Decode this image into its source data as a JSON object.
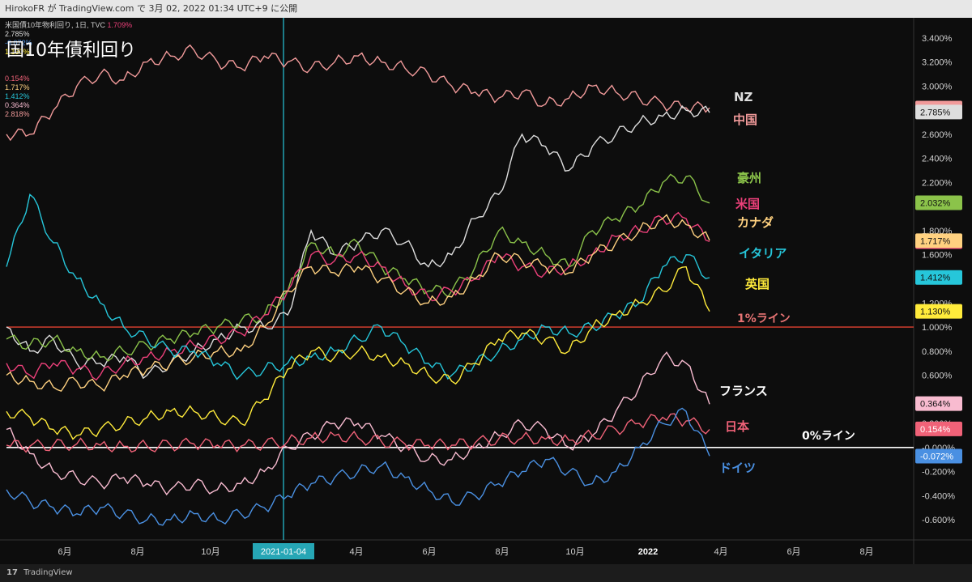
{
  "header": {
    "publish_info": "HirokoFR が TradingView.com で 3月 02, 2022 01:34 UTC+9 に公開"
  },
  "legend": {
    "title": "米国債10年物利回り, 1日, TVC",
    "title_value": "1.709%",
    "rows": [
      {
        "value": "2.785%",
        "color": "#dddddd"
      },
      {
        "value": "-0.072%",
        "color": "#4a90e2"
      },
      {
        "value": "1.130%",
        "color": "#ffeb3b"
      },
      {
        "value": "0.154%",
        "color": "#f06278"
      },
      {
        "value": "1.717%",
        "color": "#ffd180"
      },
      {
        "value": "1.412%",
        "color": "#26c6da"
      },
      {
        "value": "0.364%",
        "color": "#f8bbd0"
      },
      {
        "value": "2.818%",
        "color": "#f19a9a"
      }
    ]
  },
  "overlay_title": "国10年債利回り",
  "footer": {
    "brand": "TradingView",
    "logo_text": "17"
  },
  "crosshair_label": "2021-01-04",
  "chart_data": {
    "type": "line",
    "x_ticks": [
      "6月",
      "8月",
      "10月",
      "2021-01-04",
      "4月",
      "6月",
      "8月",
      "10月",
      "2022",
      "4月",
      "6月",
      "8月"
    ],
    "y_ticks": [
      "3.400%",
      "3.200%",
      "3.000%",
      "2.800%",
      "2.600%",
      "2.400%",
      "2.200%",
      "2.000%",
      "1.800%",
      "1.600%",
      "1.400%",
      "1.200%",
      "1.000%",
      "0.800%",
      "0.600%",
      "0.400%",
      "0.200%",
      "-0.000%",
      "-0.200%",
      "-0.400%",
      "-0.600%"
    ],
    "ylim": [
      -0.7,
      3.5
    ],
    "grid": false,
    "reference_lines": [
      {
        "label": "1%ライン",
        "value": 1.0,
        "color": "#c0392b"
      },
      {
        "label": "0%ライン",
        "value": 0.0,
        "color": "#ffffff"
      }
    ],
    "series": [
      {
        "name": "中国",
        "color": "#f19a9a",
        "last": "2.818%",
        "label_color": "#f19a9a",
        "values": [
          2.6,
          2.6,
          2.8,
          3.0,
          3.1,
          3.05,
          3.2,
          3.25,
          3.3,
          3.2,
          3.15,
          3.25,
          3.2,
          3.15,
          3.2,
          3.25,
          3.2,
          3.15,
          3.1,
          3.0,
          2.95,
          2.9,
          2.95,
          2.85,
          2.9,
          3.0,
          2.95,
          2.9,
          2.85,
          2.82,
          2.82
        ]
      },
      {
        "name": "NZ",
        "color": "#dddddd",
        "last": "2.785%",
        "label_color": "#dddddd",
        "values": [
          1.0,
          0.8,
          0.9,
          0.7,
          0.7,
          0.75,
          0.6,
          0.7,
          0.8,
          0.9,
          1.0,
          1.0,
          1.1,
          1.8,
          1.6,
          1.7,
          1.8,
          1.7,
          1.5,
          1.6,
          1.9,
          2.1,
          2.6,
          2.5,
          2.3,
          2.5,
          2.6,
          2.7,
          2.75,
          2.8,
          2.78
        ]
      },
      {
        "name": "豪州",
        "color": "#8bc34a",
        "last": "2.032%",
        "label_color": "#8bc34a",
        "values": [
          0.9,
          0.85,
          0.9,
          0.8,
          0.75,
          0.8,
          0.85,
          0.9,
          0.95,
          1.0,
          1.05,
          1.1,
          1.3,
          1.7,
          1.6,
          1.7,
          1.5,
          1.4,
          1.3,
          1.3,
          1.5,
          1.8,
          1.7,
          1.6,
          1.5,
          1.8,
          1.9,
          2.0,
          2.2,
          2.25,
          2.03
        ]
      },
      {
        "name": "米国",
        "color": "#ec407a",
        "last": "1.709%",
        "label_color": "#ec407a",
        "values": [
          0.7,
          0.6,
          0.7,
          0.65,
          0.6,
          0.7,
          0.75,
          0.8,
          0.85,
          0.9,
          0.95,
          1.1,
          1.3,
          1.6,
          1.55,
          1.6,
          1.5,
          1.35,
          1.25,
          1.3,
          1.4,
          1.6,
          1.5,
          1.45,
          1.5,
          1.6,
          1.75,
          1.8,
          1.9,
          1.9,
          1.71
        ]
      },
      {
        "name": "カナダ",
        "color": "#ffd180",
        "last": "1.717%",
        "label_color": "#ffd180",
        "values": [
          0.6,
          0.55,
          0.5,
          0.55,
          0.5,
          0.6,
          0.65,
          0.7,
          0.75,
          0.8,
          0.8,
          1.0,
          1.3,
          1.5,
          1.45,
          1.5,
          1.4,
          1.3,
          1.2,
          1.25,
          1.4,
          1.6,
          1.55,
          1.5,
          1.45,
          1.6,
          1.7,
          1.8,
          1.9,
          1.85,
          1.72
        ]
      },
      {
        "name": "イタリア",
        "color": "#26c6da",
        "last": "1.412%",
        "label_color": "#26c6da",
        "values": [
          1.5,
          2.1,
          1.7,
          1.4,
          1.2,
          1.0,
          0.9,
          0.8,
          0.8,
          0.7,
          0.6,
          0.65,
          0.7,
          0.75,
          0.8,
          0.9,
          1.0,
          0.85,
          0.7,
          0.6,
          0.7,
          0.8,
          0.9,
          1.0,
          0.95,
          1.0,
          1.1,
          1.2,
          1.5,
          1.6,
          1.41
        ]
      },
      {
        "name": "英国",
        "color": "#ffeb3b",
        "last": "1.130%",
        "label_color": "#ffeb3b",
        "values": [
          0.3,
          0.25,
          0.15,
          0.1,
          0.15,
          0.2,
          0.25,
          0.3,
          0.3,
          0.25,
          0.2,
          0.4,
          0.65,
          0.8,
          0.75,
          0.8,
          0.75,
          0.7,
          0.6,
          0.55,
          0.7,
          0.9,
          0.95,
          0.9,
          0.8,
          1.0,
          1.1,
          1.2,
          1.3,
          1.5,
          1.13
        ]
      },
      {
        "name": "フランス",
        "color": "#f8bbd0",
        "last": "0.364%",
        "label_color": "#ffffff",
        "values": [
          0.15,
          -0.05,
          -0.2,
          -0.25,
          -0.3,
          -0.25,
          -0.3,
          -0.35,
          -0.3,
          -0.35,
          -0.3,
          -0.2,
          0.0,
          0.1,
          0.2,
          0.2,
          0.1,
          0.0,
          -0.1,
          -0.1,
          0.0,
          0.1,
          0.2,
          0.15,
          0.0,
          0.1,
          0.3,
          0.5,
          0.75,
          0.7,
          0.36
        ]
      },
      {
        "name": "日本",
        "color": "#f06278",
        "last": "0.154%",
        "label_color": "#f06278",
        "values": [
          0.02,
          0.01,
          0.02,
          0.03,
          0.02,
          0.01,
          0.01,
          0.02,
          0.03,
          0.02,
          0.01,
          0.03,
          0.05,
          0.08,
          0.1,
          0.08,
          0.05,
          0.03,
          0.02,
          0.02,
          0.04,
          0.07,
          0.08,
          0.07,
          0.06,
          0.1,
          0.15,
          0.2,
          0.25,
          0.22,
          0.15
        ]
      },
      {
        "name": "ドイツ",
        "color": "#4a90e2",
        "last": "-0.072%",
        "label_color": "#4a90e2",
        "values": [
          -0.35,
          -0.45,
          -0.5,
          -0.55,
          -0.5,
          -0.55,
          -0.6,
          -0.6,
          -0.55,
          -0.6,
          -0.55,
          -0.5,
          -0.4,
          -0.3,
          -0.25,
          -0.2,
          -0.15,
          -0.25,
          -0.35,
          -0.45,
          -0.4,
          -0.3,
          -0.2,
          -0.1,
          -0.2,
          -0.3,
          -0.2,
          0.0,
          0.2,
          0.3,
          -0.07
        ]
      }
    ]
  }
}
